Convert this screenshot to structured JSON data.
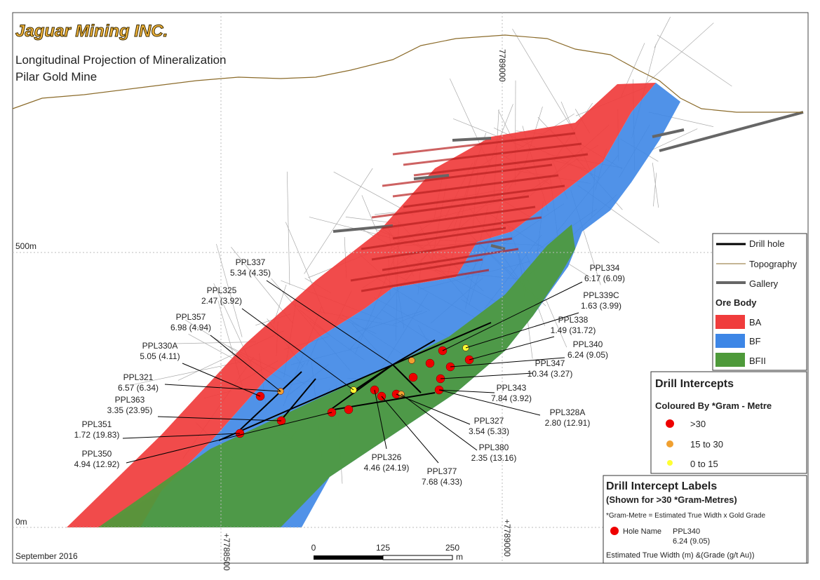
{
  "header": {
    "company": "Jaguar Mining INC.",
    "title_lines": [
      "Longitudinal Projection of Mineralization",
      "Pilar Gold Mine"
    ]
  },
  "axes": {
    "elevation_labels": [
      "500m",
      "0m"
    ],
    "easting_labels": [
      "7789000",
      "+7788500",
      "+7789000"
    ]
  },
  "date": "September 2016",
  "scale": {
    "ticks": [
      0,
      125,
      250
    ],
    "unit": "m"
  },
  "legend": {
    "items": [
      "Drill hole",
      "Topography",
      "Gallery"
    ],
    "ore_body": {
      "title": "Ore Body",
      "items": [
        "BA",
        "BF",
        "BFII"
      ]
    }
  },
  "intercept_legend": {
    "title": "Drill Intercepts",
    "subtitle": "Coloured By *Gram - Metre",
    "items": [
      ">30",
      "15 to 30",
      "0 to 15"
    ]
  },
  "label_legend": {
    "title": "Drill Intercept Labels",
    "subtitle": "(Shown for >30 *Gram-Metres)",
    "note": "*Gram-Metre = Estimated True Width x Gold Grade",
    "hole_name": "Hole Name",
    "example_name": "PPL340",
    "example_values": "6.24 (9.05)",
    "footer": "Estimated True Width (m) &(Grade (g/t Au))"
  },
  "intercepts": [
    {
      "name": "PPL337",
      "values": "5.34 (4.35)"
    },
    {
      "name": "PPL325",
      "values": "2.47 (3.92)"
    },
    {
      "name": "PPL357",
      "values": "6.98 (4.94)"
    },
    {
      "name": "PPL330A",
      "values": "5.05 (4.11)"
    },
    {
      "name": "PPL321",
      "values": "6.57 (6.34)"
    },
    {
      "name": "PPL363",
      "values": "3.35 (23.95)"
    },
    {
      "name": "PPL351",
      "values": "1.72 (19.83)"
    },
    {
      "name": "PPL350",
      "values": "4.94 (12.92)"
    },
    {
      "name": "PPL334",
      "values": "6.17 (6.09)"
    },
    {
      "name": "PPL339C",
      "values": "1.63 (3.99)"
    },
    {
      "name": "PPL338",
      "values": "1.49 (31.72)"
    },
    {
      "name": "PPL340",
      "values": "6.24 (9.05)"
    },
    {
      "name": "PPL347",
      "values": "10.34 (3.27)"
    },
    {
      "name": "PPL343",
      "values": "7.84 (3.92)"
    },
    {
      "name": "PPL328A",
      "values": "2.80 (12.91)"
    },
    {
      "name": "PPL327",
      "values": "3.54 (5.33)"
    },
    {
      "name": "PPL380",
      "values": "2.35 (13.16)"
    },
    {
      "name": "PPL326",
      "values": "4.46 (24.19)"
    },
    {
      "name": "PPL377",
      "values": "7.68 (4.33)"
    }
  ]
}
